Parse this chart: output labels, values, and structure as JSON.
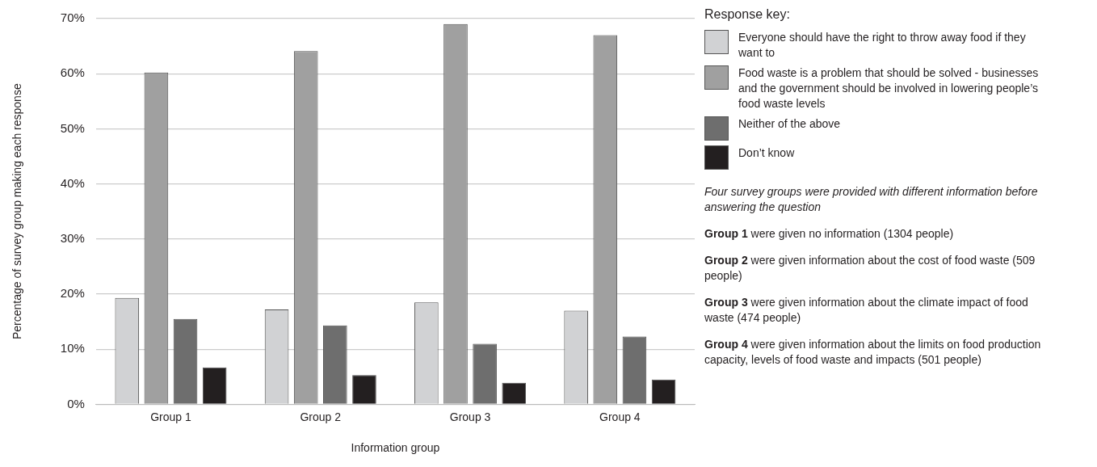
{
  "chart_data": {
    "type": "bar",
    "xlabel": "Information group",
    "ylabel": "Percentage of survey group making each response",
    "legend_title": "Response key:",
    "legend": "right",
    "categories": [
      "Group 1",
      "Group 2",
      "Group 3",
      "Group 4"
    ],
    "series": [
      {
        "name": "Everyone should have the right to throw away food if they want to",
        "color": "#d1d2d4",
        "values": [
          19.3,
          17.2,
          18.5,
          17
        ]
      },
      {
        "name": "Food waste is a problem that should be solved - businesses and the government should be involved in lowering people’s food waste levels",
        "color": "#a0a0a0",
        "values": [
          60.2,
          64.1,
          69,
          67
        ]
      },
      {
        "name": "Neither of the above",
        "color": "#6e6e6e",
        "values": [
          15.5,
          14.3,
          11,
          12.3
        ]
      },
      {
        "name": "Don’t know",
        "color": "#231f20",
        "values": [
          6.7,
          5.3,
          3.9,
          4.5
        ]
      }
    ],
    "ylim": [
      0,
      70
    ],
    "yticks": [
      {
        "value": 0,
        "label": "0%"
      },
      {
        "value": 10,
        "label": "10%"
      },
      {
        "value": 20,
        "label": "20%"
      },
      {
        "value": 30,
        "label": "30%"
      },
      {
        "value": 40,
        "label": "40%"
      },
      {
        "value": 50,
        "label": "50%"
      },
      {
        "value": 60,
        "label": "60%"
      },
      {
        "value": 70,
        "label": "70%"
      }
    ],
    "grid": "y",
    "annotations": [
      "Four survey groups were provided with different information before answering the question",
      "Group 1 were given no information (1304 people)",
      "Group 2 were given information about the cost of food waste (509 people)",
      "Group 3 were given information about the climate impact of food waste (474 people)",
      "Group 4 were given information about the limits on food production capacity, levels of food waste and impacts (501 people)"
    ]
  }
}
